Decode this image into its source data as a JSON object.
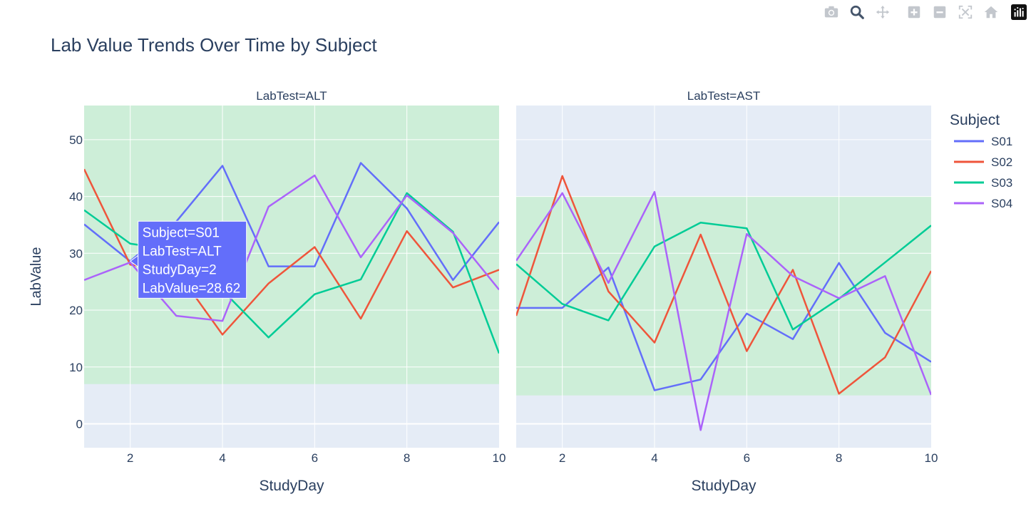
{
  "title": "Lab Value Trends Over Time by Subject",
  "legend": {
    "title": "Subject",
    "placement": "right"
  },
  "modebar": {
    "buttons": [
      "camera-icon",
      "zoom-icon",
      "pan-icon",
      "zoom-in-icon",
      "zoom-out-icon",
      "autoscale-icon",
      "reset-axes-icon",
      "plotly-logo-icon"
    ]
  },
  "tooltip": {
    "panel": "ALT",
    "subject": "S01",
    "x": 2,
    "y": 28.62,
    "lines": [
      "Subject=S01",
      "LabTest=ALT",
      "StudyDay=2",
      "LabValue=28.62"
    ],
    "color": "#636efa"
  },
  "chart_data": {
    "type": "line",
    "ylabel": "LabValue",
    "xlim": [
      1,
      10
    ],
    "ylim": [
      -4.2,
      56
    ],
    "x_ticks": [
      2,
      4,
      6,
      8,
      10
    ],
    "y_ticks": [
      0,
      10,
      20,
      30,
      40,
      50
    ],
    "grid": true,
    "colors": {
      "plot_bg": "#e5ecf6",
      "normal_band": "#cdeed8",
      "grid": "#ffffff"
    },
    "panels": [
      {
        "label": "LabTest=ALT",
        "xlabel": "StudyDay",
        "normal_range": [
          7,
          56
        ],
        "series": [
          {
            "name": "S01",
            "color": "#636efa",
            "x": [
              1,
              2,
              3,
              4,
              5,
              6,
              7,
              8,
              9,
              10
            ],
            "y": [
              35.1,
              28.6,
              35.6,
              45.4,
              27.7,
              27.7,
              45.9,
              37.9,
              25.3,
              35.5
            ]
          },
          {
            "name": "S02",
            "color": "#ef553b",
            "x": [
              1,
              2,
              3,
              4,
              5,
              6,
              7,
              8,
              9,
              10
            ],
            "y": [
              44.8,
              28.0,
              27.0,
              15.7,
              24.7,
              31.1,
              18.5,
              33.9,
              24.0,
              27.1
            ]
          },
          {
            "name": "S03",
            "color": "#00cc96",
            "x": [
              1,
              2,
              3,
              4,
              5,
              6,
              7,
              8,
              9,
              10
            ],
            "y": [
              37.6,
              31.7,
              30.5,
              23.5,
              15.2,
              22.8,
              25.4,
              40.6,
              33.8,
              12.4
            ]
          },
          {
            "name": "S04",
            "color": "#ab63fa",
            "x": [
              1,
              2,
              3,
              4,
              5,
              6,
              7,
              8,
              9,
              10
            ],
            "y": [
              25.3,
              28.4,
              19.0,
              18.1,
              38.2,
              43.7,
              29.3,
              40.2,
              33.6,
              23.6
            ]
          }
        ]
      },
      {
        "label": "LabTest=AST",
        "xlabel": "StudyDay",
        "normal_range": [
          5,
          40
        ],
        "series": [
          {
            "name": "S01",
            "color": "#636efa",
            "x": [
              1,
              2,
              3,
              4,
              5,
              6,
              7,
              8,
              9,
              10
            ],
            "y": [
              20.4,
              20.4,
              27.5,
              5.9,
              7.8,
              19.4,
              14.9,
              28.3,
              16.0,
              10.9
            ]
          },
          {
            "name": "S02",
            "color": "#ef553b",
            "x": [
              1,
              2,
              3,
              4,
              5,
              6,
              7,
              8,
              9,
              10
            ],
            "y": [
              19.0,
              43.6,
              23.3,
              14.3,
              33.3,
              12.8,
              27.1,
              5.3,
              11.7,
              26.9
            ]
          },
          {
            "name": "S03",
            "color": "#00cc96",
            "x": [
              1,
              2,
              3,
              4,
              5,
              6,
              7,
              8,
              9,
              10
            ],
            "y": [
              28.1,
              21.1,
              18.2,
              31.2,
              35.4,
              34.4,
              16.6,
              22.0,
              28.4,
              34.9
            ]
          },
          {
            "name": "S04",
            "color": "#ab63fa",
            "x": [
              1,
              2,
              3,
              4,
              5,
              6,
              7,
              8,
              9,
              10
            ],
            "y": [
              28.7,
              40.6,
              24.8,
              40.8,
              -1.1,
              33.4,
              26.0,
              22.1,
              26.0,
              5.1
            ]
          }
        ]
      }
    ],
    "legend_entries": [
      {
        "name": "S01",
        "color": "#636efa"
      },
      {
        "name": "S02",
        "color": "#ef553b"
      },
      {
        "name": "S03",
        "color": "#00cc96"
      },
      {
        "name": "S04",
        "color": "#ab63fa"
      }
    ]
  }
}
